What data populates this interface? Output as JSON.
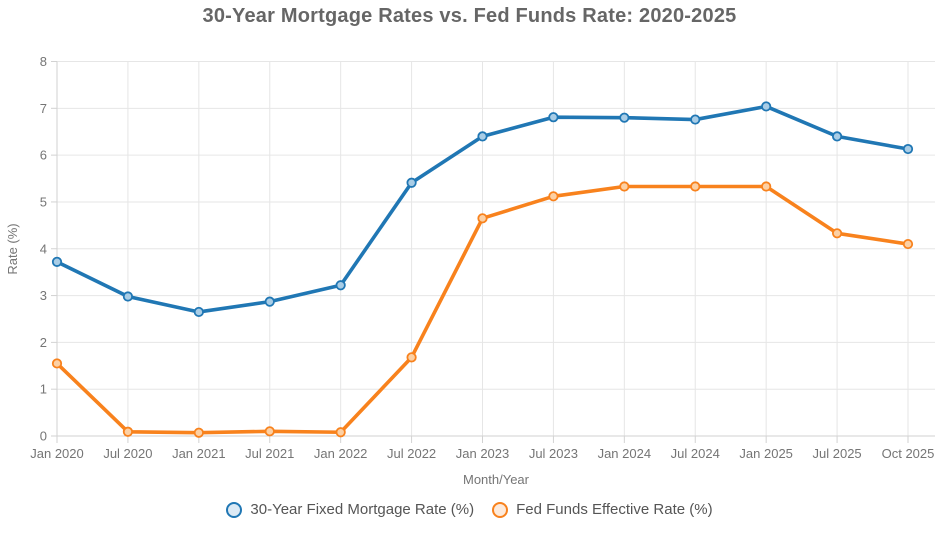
{
  "chart_data": {
    "type": "line",
    "title": "30-Year Mortgage Rates vs. Fed Funds Rate: 2020-2025",
    "xlabel": "Month/Year",
    "ylabel": "Rate (%)",
    "ylim": [
      0,
      8
    ],
    "ytick_step": 1,
    "grid": true,
    "legend_position": "bottom",
    "categories": [
      "Jan 2020",
      "Jul 2020",
      "Jan 2021",
      "Jul 2021",
      "Jan 2022",
      "Jul 2022",
      "Jan 2023",
      "Jul 2023",
      "Jan 2024",
      "Jul 2024",
      "Jan 2025",
      "Jul 2025",
      "Oct 2025"
    ],
    "series": [
      {
        "name": "30-Year Fixed Mortgage Rate (%)",
        "color": "#2077b4",
        "marker_fill": "#a9cde6",
        "legend_fill": "#dceaf5",
        "values": [
          3.72,
          2.98,
          2.65,
          2.87,
          3.22,
          5.41,
          6.4,
          6.81,
          6.8,
          6.76,
          7.04,
          6.4,
          6.13
        ]
      },
      {
        "name": "Fed Funds Effective Rate (%)",
        "color": "#f8821d",
        "marker_fill": "#fcd0a4",
        "legend_fill": "#fdeadb",
        "values": [
          1.55,
          0.09,
          0.07,
          0.1,
          0.08,
          1.68,
          4.65,
          5.12,
          5.33,
          5.33,
          5.33,
          4.33,
          4.1
        ]
      }
    ]
  },
  "colors": {
    "grid": "#e6e6e6",
    "axis": "#d2d2d2",
    "tick_text": "#757575",
    "axis_title_text": "#757575",
    "title_text": "#666666",
    "legend_text": "#555555"
  }
}
